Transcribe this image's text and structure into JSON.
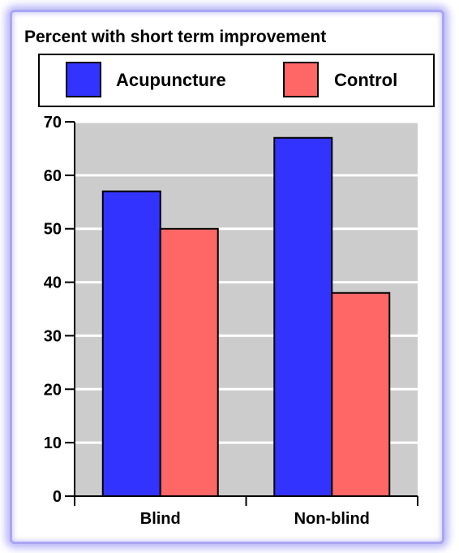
{
  "chart_data": {
    "type": "bar",
    "title": "Percent with short term improvement",
    "categories": [
      "Blind",
      "Non-blind"
    ],
    "series": [
      {
        "name": "Acupuncture",
        "values": [
          57,
          67
        ],
        "color": "#3333ff"
      },
      {
        "name": "Control",
        "values": [
          50,
          38
        ],
        "color": "#ff6666"
      }
    ],
    "ylim": [
      0,
      70
    ],
    "yticks": [
      0,
      10,
      20,
      30,
      40,
      50,
      60,
      70
    ],
    "xlabel": "",
    "ylabel": "",
    "grid": true,
    "legend": "top",
    "plot_background": "#cccccc"
  }
}
